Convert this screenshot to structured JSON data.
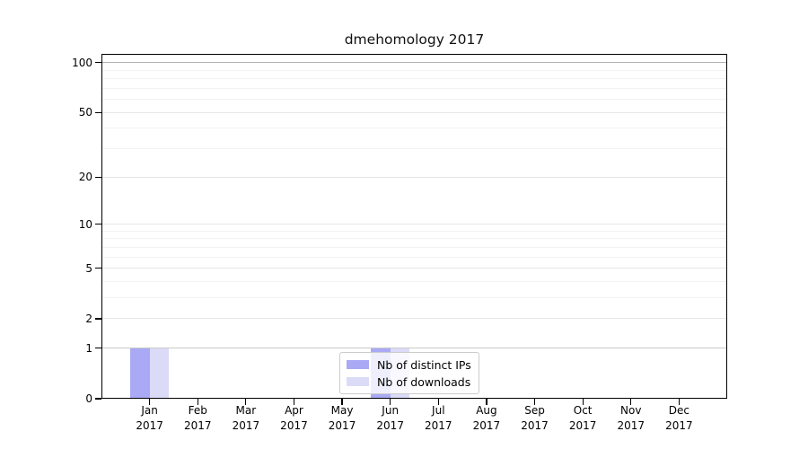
{
  "chart_data": {
    "type": "bar",
    "title": "dmehomology 2017",
    "x_tick_months": [
      "Jan",
      "Feb",
      "Mar",
      "Apr",
      "May",
      "Jun",
      "Jul",
      "Aug",
      "Sep",
      "Oct",
      "Nov",
      "Dec"
    ],
    "x_tick_year": "2017",
    "series": [
      {
        "name": "Nb of distinct IPs",
        "color": "#a9a9f5",
        "values": [
          1,
          0,
          0,
          0,
          0,
          1,
          0,
          0,
          0,
          0,
          0,
          0
        ]
      },
      {
        "name": "Nb of downloads",
        "color": "#dbdbf8",
        "values": [
          1,
          0,
          0,
          0,
          0,
          1,
          0,
          0,
          0,
          0,
          0,
          0
        ]
      }
    ],
    "y_scale": "log1p",
    "y_major_ticks": [
      0,
      1,
      2,
      5,
      10,
      20,
      50,
      100
    ],
    "y_minor_gridlines": [
      3,
      4,
      6,
      7,
      8,
      9,
      30,
      40,
      60,
      70,
      80,
      90
    ],
    "ylim": [
      0,
      113
    ],
    "legend_position": "lower center",
    "grid": true,
    "colors": {
      "grid_line_100": "#b2b2b2",
      "grid_line_1": "#c9c9c9",
      "grid_major": "#e6e6e6",
      "grid_minor": "#f2f2f2",
      "spine": "#000000"
    }
  }
}
